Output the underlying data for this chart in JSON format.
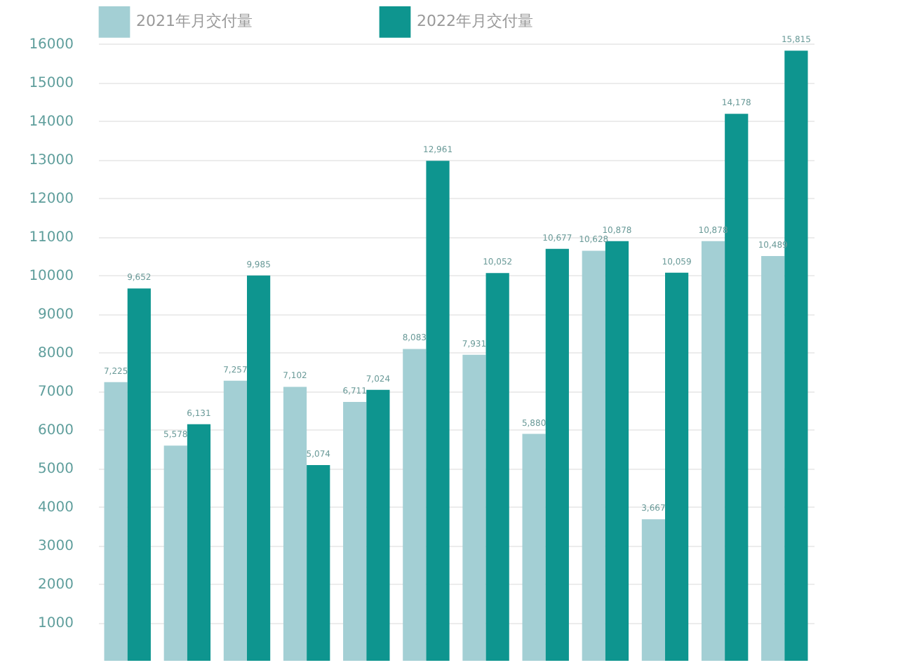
{
  "chart_data": {
    "type": "bar",
    "categories": [
      null,
      null,
      null,
      null,
      null,
      null,
      null,
      null,
      null,
      null,
      null,
      null
    ],
    "series": [
      {
        "name": "2021年月交付量",
        "color": "#a3cfd4",
        "values": [
          7225,
          5578,
          7257,
          7102,
          6711,
          8083,
          7931,
          5880,
          10628,
          3667,
          10878,
          10489
        ],
        "value_labels": [
          "7,225",
          "5,578",
          "7,257",
          "7,102",
          "6,711",
          "8,083",
          "7,931",
          "5,880",
          "10,628",
          "3,667",
          "10,878",
          "10,489"
        ]
      },
      {
        "name": "2022年月交付量",
        "color": "#0e958f",
        "values": [
          9652,
          6131,
          9985,
          5074,
          7024,
          12961,
          10052,
          10677,
          10878,
          10059,
          14178,
          15815
        ],
        "value_labels": [
          "9,652",
          "6,131",
          "9,985",
          "5,074",
          "7,024",
          "12,961",
          "10,052",
          "10,677",
          "10,878",
          "10,059",
          "14,178",
          "15,815"
        ]
      }
    ],
    "ylim": [
      0,
      16000
    ],
    "yticks": [
      1000,
      2000,
      3000,
      4000,
      5000,
      6000,
      7000,
      8000,
      9000,
      10000,
      11000,
      12000,
      13000,
      14000,
      15000,
      16000
    ],
    "grid": "y",
    "legend": "top left",
    "tick_labels": "y"
  }
}
